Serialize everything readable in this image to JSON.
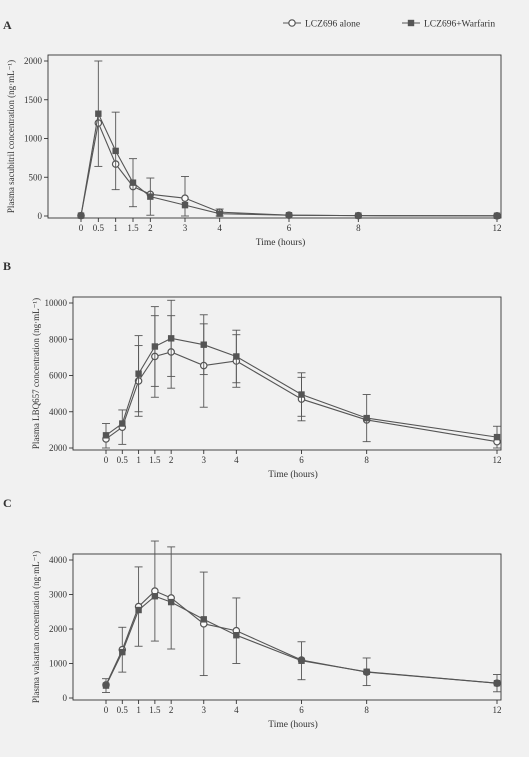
{
  "legend": {
    "placement": "top-right",
    "items": [
      {
        "label": "LCZ696 alone",
        "marker": "open-circle"
      },
      {
        "label": "LCZ696+Warfarin",
        "marker": "filled-square"
      }
    ]
  },
  "colors": {
    "background": "#f1f1f1",
    "series": "#555555",
    "axis": "#333333"
  },
  "chart_data": [
    {
      "type": "line",
      "panel_label": "A",
      "xlabel": "Time (hours)",
      "ylabel": "Plasma sacubitril concentration (ng·mL⁻¹)",
      "xlim": [
        0,
        12
      ],
      "ylim": [
        0,
        2000
      ],
      "xticks": [
        0,
        0.5,
        1,
        1.5,
        2,
        3,
        4,
        6,
        8,
        12
      ],
      "xtick_labels": [
        "0",
        "0.5",
        "1",
        "1.5",
        "2",
        "3",
        "4",
        "6",
        "8",
        "12"
      ],
      "yticks": [
        0,
        500,
        1000,
        1500,
        2000
      ],
      "x": [
        0,
        0.5,
        1,
        1.5,
        2,
        3,
        4,
        6,
        8,
        12
      ],
      "series": [
        {
          "name": "LCZ696 alone",
          "marker": "open-circle",
          "values": [
            5,
            1200,
            670,
            380,
            280,
            230,
            50,
            10,
            5,
            3
          ],
          "error": [
            0,
            0,
            0,
            0,
            0,
            280,
            0,
            0,
            0,
            0
          ]
        },
        {
          "name": "LCZ696+Warfarin",
          "marker": "filled-square",
          "values": [
            5,
            1320,
            840,
            430,
            250,
            140,
            30,
            10,
            5,
            3
          ],
          "error": [
            0,
            680,
            500,
            310,
            240,
            0,
            60,
            0,
            0,
            0
          ]
        }
      ]
    },
    {
      "type": "line",
      "panel_label": "B",
      "xlabel": "Time (hours)",
      "ylabel": "Plasma LBQ657 concentration (ng·mL⁻¹)",
      "xlim": [
        0,
        12
      ],
      "ylim": [
        2000,
        10000
      ],
      "xticks": [
        0,
        0.5,
        1,
        1.5,
        2,
        3,
        4,
        6,
        8,
        12
      ],
      "xtick_labels": [
        "0",
        "0.5",
        "1",
        "1.5",
        "2",
        "3",
        "4",
        "6",
        "8",
        "12"
      ],
      "yticks": [
        2000,
        4000,
        6000,
        8000,
        10000
      ],
      "x": [
        0,
        0.5,
        1,
        1.5,
        2,
        3,
        4,
        6,
        8,
        12
      ],
      "series": [
        {
          "name": "LCZ696 alone",
          "marker": "open-circle",
          "values": [
            2500,
            3150,
            5700,
            7050,
            7300,
            6550,
            6800,
            4700,
            3550,
            2350
          ],
          "error": [
            850,
            950,
            1950,
            2250,
            2000,
            2300,
            1450,
            1200,
            0,
            850
          ]
        },
        {
          "name": "LCZ696+Warfarin",
          "marker": "filled-square",
          "values": [
            2700,
            3350,
            6100,
            7600,
            8050,
            7700,
            7050,
            4950,
            3650,
            2600
          ],
          "error": [
            0,
            0,
            2100,
            2200,
            2100,
            1650,
            1450,
            1200,
            1300,
            0
          ]
        }
      ]
    },
    {
      "type": "line",
      "panel_label": "C",
      "xlabel": "Time (hours)",
      "ylabel": "Plasma valsartan concentration (ng·mL⁻¹)",
      "xlim": [
        0,
        12
      ],
      "ylim": [
        0,
        4000
      ],
      "xticks": [
        0,
        0.5,
        1,
        1.5,
        2,
        3,
        4,
        6,
        8,
        12
      ],
      "xtick_labels": [
        "0",
        "0.5",
        "1",
        "1.5",
        "2",
        "3",
        "4",
        "6",
        "8",
        "12"
      ],
      "yticks": [
        0,
        1000,
        2000,
        3000,
        4000
      ],
      "x": [
        0,
        0.5,
        1,
        1.5,
        2,
        3,
        4,
        6,
        8,
        12
      ],
      "series": [
        {
          "name": "LCZ696 alone",
          "marker": "open-circle",
          "values": [
            380,
            1400,
            2650,
            3100,
            2900,
            2150,
            1950,
            1100,
            750,
            430
          ],
          "error": [
            0,
            650,
            1150,
            1450,
            1480,
            1500,
            950,
            0,
            0,
            0
          ]
        },
        {
          "name": "LCZ696+Warfarin",
          "marker": "filled-square",
          "values": [
            360,
            1330,
            2550,
            2950,
            2780,
            2280,
            1820,
            1080,
            760,
            430
          ],
          "error": [
            200,
            0,
            0,
            0,
            0,
            0,
            0,
            550,
            400,
            250
          ]
        }
      ]
    }
  ]
}
